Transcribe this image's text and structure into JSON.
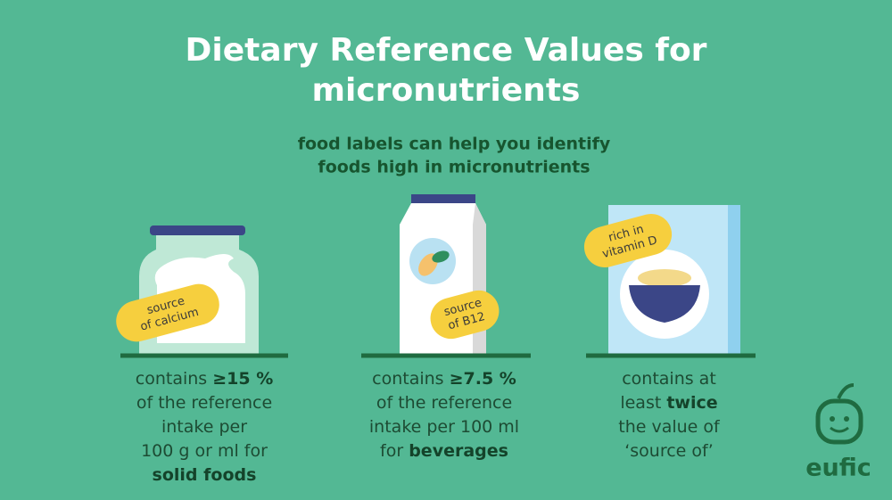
{
  "header": {
    "title_lines": [
      "Dietary Reference Values for",
      "micronutrients"
    ],
    "subtitle_lines": [
      "food labels can help you identify",
      "foods high in micronutrients"
    ]
  },
  "items": [
    {
      "tag_lines": [
        "source",
        "of calcium"
      ],
      "description_lines": [
        [
          {
            "text": "contains "
          },
          {
            "text": "≥15 %",
            "bold": true
          }
        ],
        [
          {
            "text": "of the reference"
          }
        ],
        [
          {
            "text": "intake per"
          }
        ],
        [
          {
            "text": "100 g or ml for"
          }
        ],
        [
          {
            "text": "solid foods",
            "bold": true
          }
        ]
      ]
    },
    {
      "tag_lines": [
        "source",
        "of B12"
      ],
      "description_lines": [
        [
          {
            "text": "contains "
          },
          {
            "text": "≥7.5 %",
            "bold": true
          }
        ],
        [
          {
            "text": "of the reference"
          }
        ],
        [
          {
            "text": "intake per 100 ml"
          }
        ],
        [
          {
            "text": "for "
          },
          {
            "text": "beverages",
            "bold": true
          }
        ]
      ]
    },
    {
      "tag_lines": [
        "rich in",
        "vitamin D"
      ],
      "description_lines": [
        [
          {
            "text": "contains at"
          }
        ],
        [
          {
            "text": "least "
          },
          {
            "text": "twice",
            "bold": true
          }
        ],
        [
          {
            "text": "the value of"
          }
        ],
        [
          {
            "text": "‘source of’"
          }
        ]
      ]
    }
  ],
  "logo": {
    "text": "eufic"
  }
}
